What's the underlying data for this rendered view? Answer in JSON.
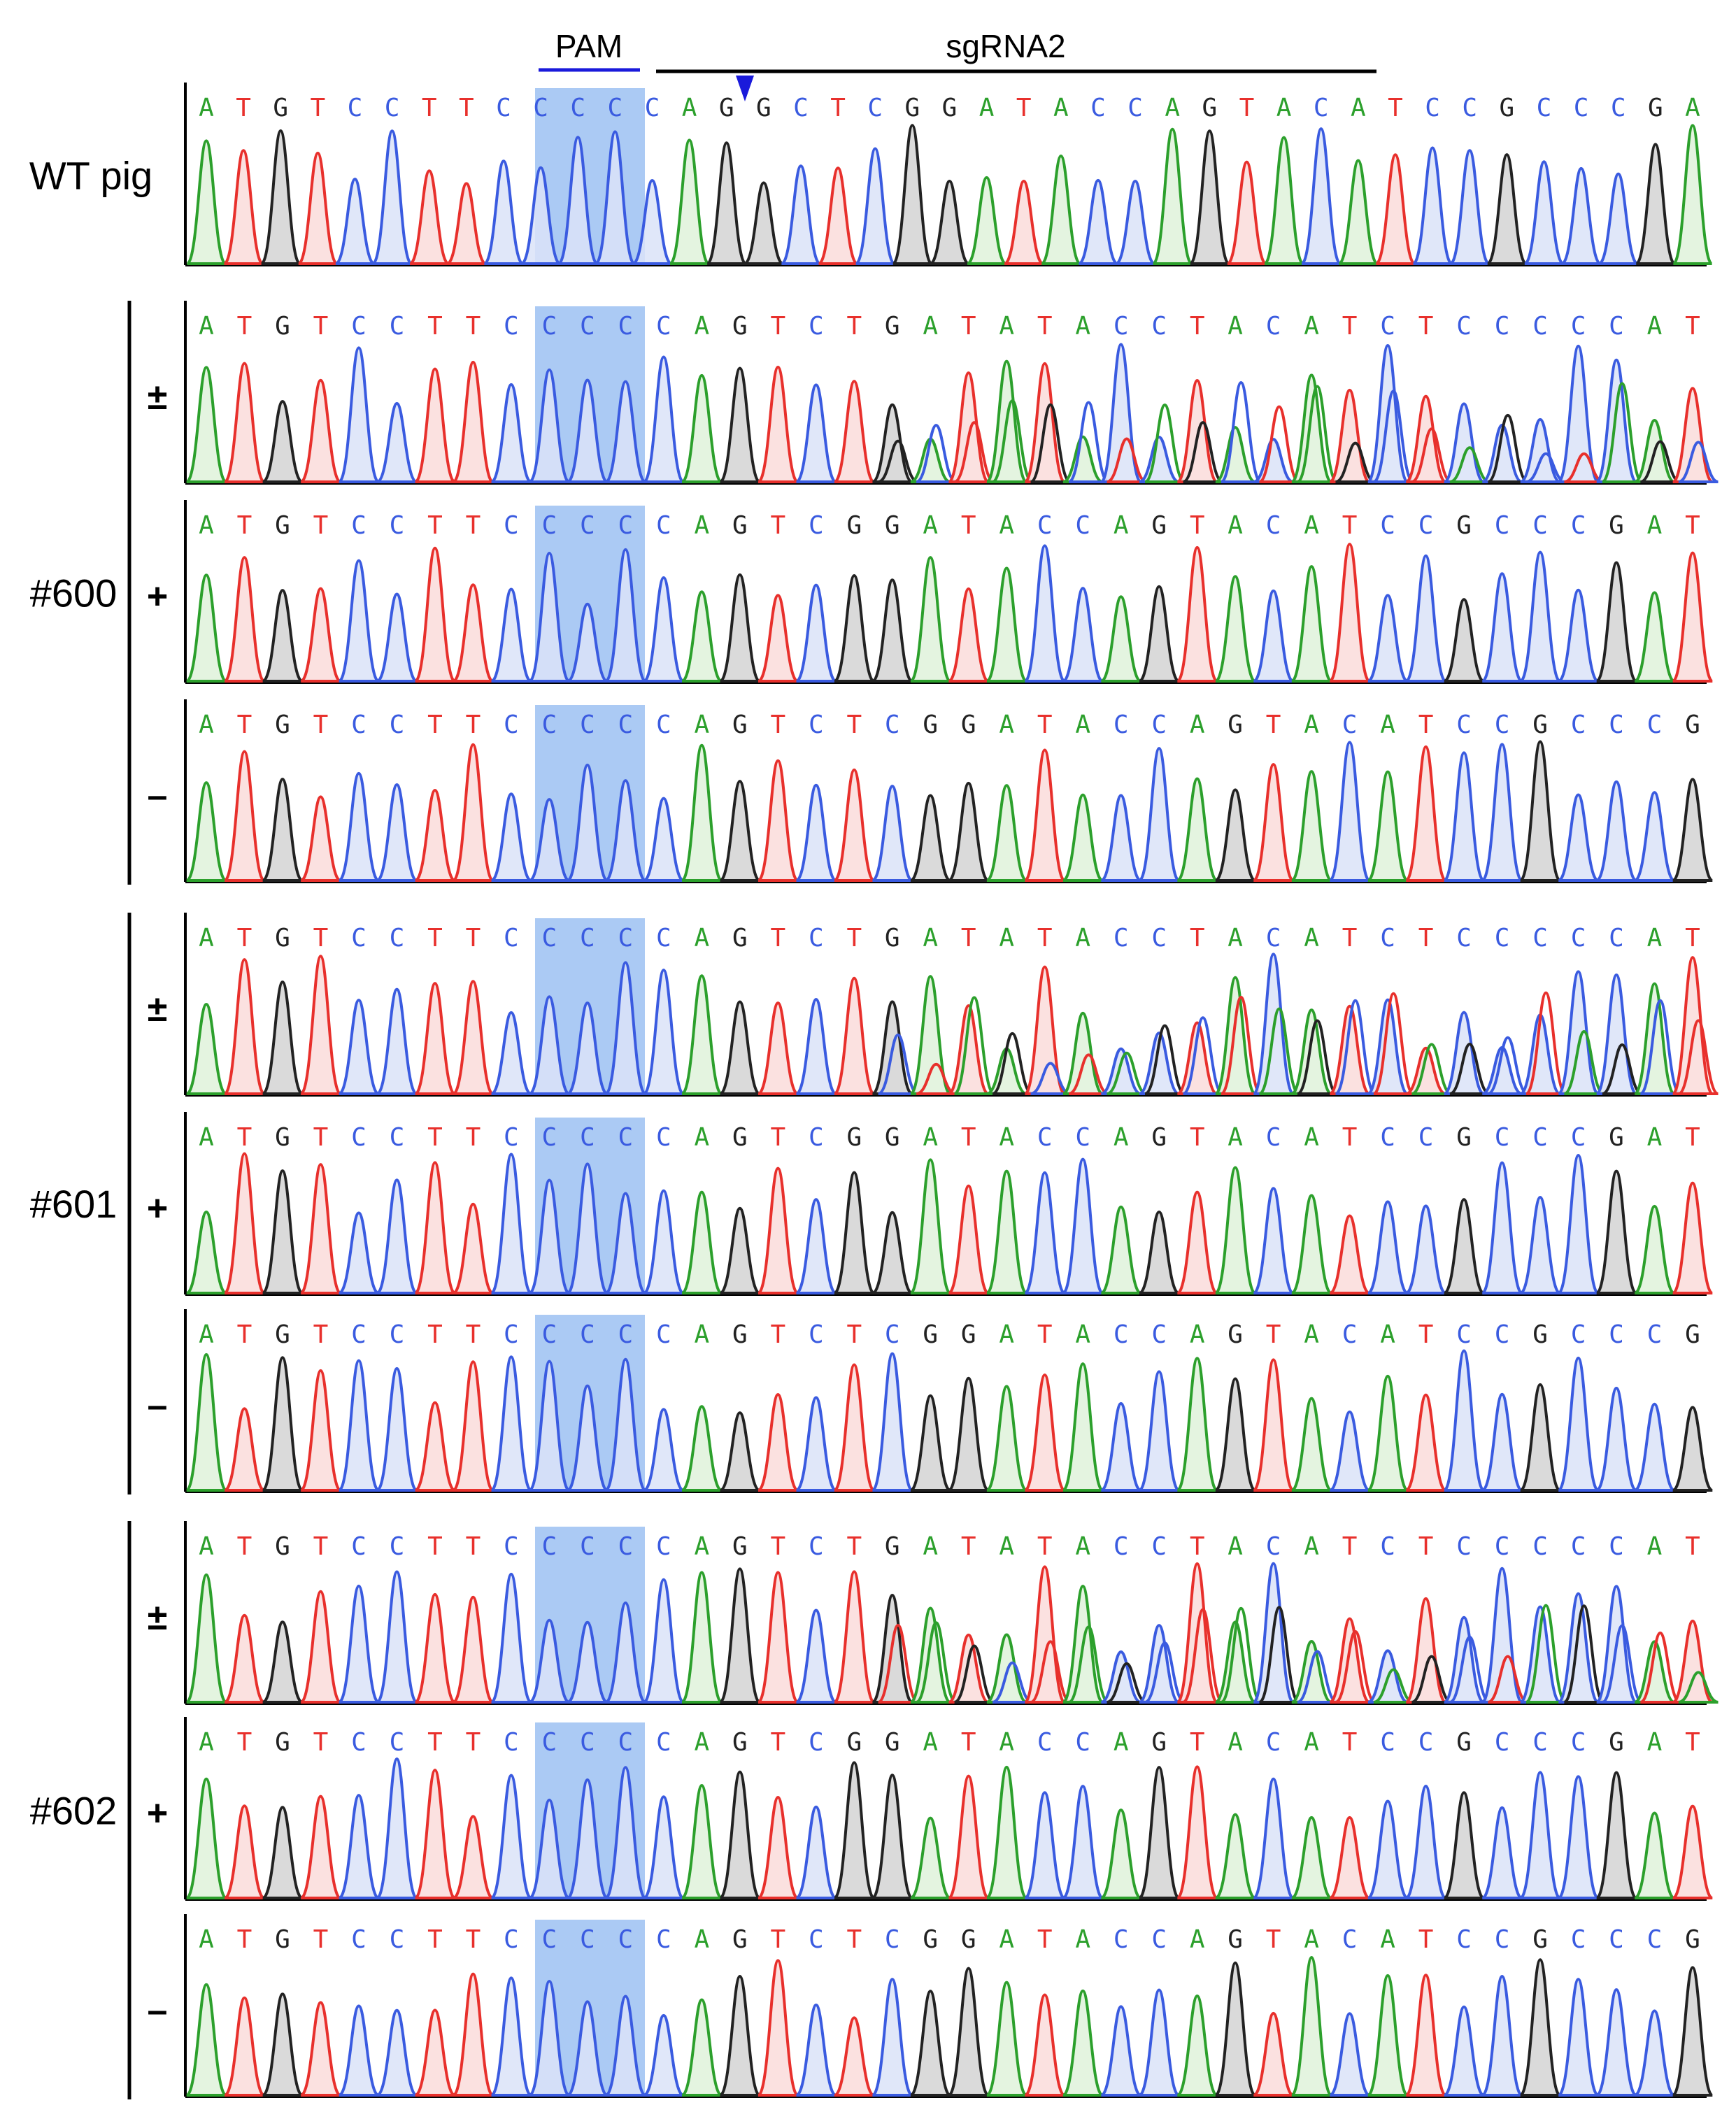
{
  "header": {
    "pam_label": "PAM",
    "sgrna_label": "sgRNA2"
  },
  "colors": {
    "A": "#2ca02c",
    "T": "#e8302c",
    "C": "#3a5be0",
    "G": "#222222",
    "pam_highlight": "#8fb8f0",
    "annotation": "#1a1adb"
  },
  "groups": [
    {
      "label": "WT pig",
      "panels": [
        "wt"
      ]
    },
    {
      "label": "#600",
      "panels": [
        "pm",
        "plus",
        "minus"
      ]
    },
    {
      "label": "#601",
      "panels": [
        "pm",
        "plus",
        "minus"
      ]
    },
    {
      "label": "#602",
      "panels": [
        "pm",
        "plus",
        "minus"
      ]
    }
  ],
  "panels": [
    {
      "group": "WT pig",
      "marker": "",
      "sequence": "ATGTCCTTCCCCCAGGCTCGGATACCAGTACATCCGCCCGA"
    },
    {
      "group": "#600",
      "marker": "±",
      "sequence": "ATGTCCTTCCCCCAGTCTGATATACCTACATCTCCCCCAT"
    },
    {
      "group": "#600",
      "marker": "+",
      "sequence": "ATGTCCTTCCCCCAGTCGGATACCAGTACATCCGCCCGAT"
    },
    {
      "group": "#600",
      "marker": "–",
      "sequence": "ATGTCCTTCCCCCAGTCTCGGATACCAGTACATCCGCCCG"
    },
    {
      "group": "#601",
      "marker": "±",
      "sequence": "ATGTCCTTCCCCCAGTCTGATATACCTACATCTCCCCCAT"
    },
    {
      "group": "#601",
      "marker": "+",
      "sequence": "ATGTCCTTCCCCCAGTCGGATACCAGTACATCCGCCCGAT"
    },
    {
      "group": "#601",
      "marker": "–",
      "sequence": "ATGTCCTTCCCCCAGTCTCGGATACCAGTACATCCGCCCG"
    },
    {
      "group": "#602",
      "marker": "±",
      "sequence": "ATGTCCTTCCCCCAGTCTGATATACCTACATCTCCCCCAT"
    },
    {
      "group": "#602",
      "marker": "+",
      "sequence": "ATGTCCTTCCCCCAGTCGGATACCAGTACATCCGCCCGAT"
    },
    {
      "group": "#602",
      "marker": "–",
      "sequence": "ATGTCCTTCCCCCAGTCTCGGATACCAGTACATCCGCCCG"
    }
  ]
}
